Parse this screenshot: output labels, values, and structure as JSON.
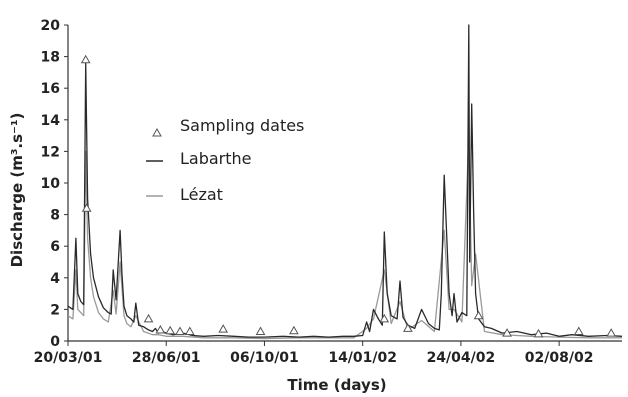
{
  "chart_data": {
    "type": "line",
    "xlabel": "Time (days)",
    "ylabel": "Discharge (m³.s⁻¹)",
    "ylim": [
      0,
      20
    ],
    "xlim": [
      "2001-03-20",
      "2002-10-05"
    ],
    "y_ticks": [
      0,
      2,
      4,
      6,
      8,
      10,
      12,
      14,
      16,
      18,
      20
    ],
    "x_ticks": [
      {
        "date": "2001-03-20",
        "label": "20/03/01"
      },
      {
        "date": "2001-06-28",
        "label": "28/06/01"
      },
      {
        "date": "2001-10-06",
        "label": "06/10/01"
      },
      {
        "date": "2002-01-14",
        "label": "14/01/02"
      },
      {
        "date": "2002-04-24",
        "label": "24/04/02"
      },
      {
        "date": "2002-08-02",
        "label": "02/08/02"
      }
    ],
    "grid": false,
    "legend_position": "upper-left",
    "legend": [
      {
        "name": "Sampling dates",
        "marker": "triangle"
      },
      {
        "name": "Labarthe",
        "marker": "line"
      },
      {
        "name": "Lézat",
        "marker": "line"
      }
    ],
    "series": [
      {
        "name": "Labarthe",
        "color": "#2a2a2a",
        "x": [
          "2001-03-20",
          "2001-03-25",
          "2001-03-28",
          "2001-03-30",
          "2001-04-02",
          "2001-04-05",
          "2001-04-07",
          "2001-04-09",
          "2001-04-12",
          "2001-04-15",
          "2001-04-20",
          "2001-04-25",
          "2001-04-30",
          "2001-05-03",
          "2001-05-05",
          "2001-05-08",
          "2001-05-12",
          "2001-05-14",
          "2001-05-16",
          "2001-05-19",
          "2001-05-23",
          "2001-05-26",
          "2001-05-28",
          "2001-05-31",
          "2001-06-05",
          "2001-06-10",
          "2001-06-14",
          "2001-06-17",
          "2001-06-20",
          "2001-06-24",
          "2001-06-28",
          "2001-07-05",
          "2001-07-15",
          "2001-07-25",
          "2001-08-05",
          "2001-08-20",
          "2001-09-05",
          "2001-09-20",
          "2001-10-06",
          "2001-10-25",
          "2001-11-10",
          "2001-11-25",
          "2001-12-10",
          "2001-12-25",
          "2002-01-05",
          "2002-01-14",
          "2002-01-18",
          "2002-01-21",
          "2002-01-25",
          "2002-01-30",
          "2002-02-03",
          "2002-02-05",
          "2002-02-08",
          "2002-02-12",
          "2002-02-18",
          "2002-02-21",
          "2002-02-24",
          "2002-03-01",
          "2002-03-08",
          "2002-03-15",
          "2002-03-22",
          "2002-03-28",
          "2002-04-02",
          "2002-04-04",
          "2002-04-07",
          "2002-04-12",
          "2002-04-15",
          "2002-04-17",
          "2002-04-20",
          "2002-04-25",
          "2002-04-30",
          "2002-05-02",
          "2002-05-03",
          "2002-05-05",
          "2002-05-07",
          "2002-05-09",
          "2002-05-12",
          "2002-05-18",
          "2002-05-25",
          "2002-06-05",
          "2002-06-20",
          "2002-07-05",
          "2002-07-20",
          "2002-08-02",
          "2002-08-15",
          "2002-09-01",
          "2002-09-20",
          "2002-10-05"
        ],
        "y": [
          2.2,
          2.0,
          6.5,
          3.0,
          2.5,
          2.3,
          17.6,
          9.0,
          5.5,
          4.0,
          2.8,
          2.1,
          1.8,
          1.7,
          4.5,
          2.6,
          7.0,
          4.2,
          2.2,
          1.6,
          1.4,
          1.2,
          2.4,
          1.0,
          0.9,
          0.7,
          0.6,
          0.8,
          0.5,
          0.6,
          0.5,
          0.4,
          0.5,
          0.35,
          0.3,
          0.35,
          0.3,
          0.25,
          0.25,
          0.3,
          0.25,
          0.3,
          0.25,
          0.3,
          0.3,
          0.35,
          1.2,
          0.6,
          2.0,
          1.4,
          1.0,
          6.9,
          3.0,
          1.6,
          1.4,
          3.8,
          1.5,
          1.0,
          0.8,
          2.0,
          1.1,
          0.8,
          0.7,
          3.0,
          10.5,
          3.0,
          1.6,
          3.0,
          1.2,
          1.8,
          1.6,
          20.0,
          5.0,
          15.0,
          8.0,
          3.0,
          1.4,
          0.9,
          0.8,
          0.5,
          0.6,
          0.4,
          0.5,
          0.3,
          0.4,
          0.3,
          0.35,
          0.3
        ]
      },
      {
        "name": "Lézat",
        "color": "#9a9a9a",
        "x": [
          "2001-03-20",
          "2001-03-25",
          "2001-03-28",
          "2001-03-30",
          "2001-04-02",
          "2001-04-05",
          "2001-04-07",
          "2001-04-09",
          "2001-04-12",
          "2001-04-15",
          "2001-04-20",
          "2001-04-25",
          "2001-04-30",
          "2001-05-05",
          "2001-05-08",
          "2001-05-12",
          "2001-05-16",
          "2001-05-19",
          "2001-05-23",
          "2001-05-28",
          "2001-06-05",
          "2001-06-14",
          "2001-06-20",
          "2001-06-28",
          "2001-07-15",
          "2001-08-05",
          "2001-09-05",
          "2001-10-06",
          "2001-11-10",
          "2001-12-10",
          "2002-01-05",
          "2002-01-18",
          "2002-01-25",
          "2002-02-05",
          "2002-02-12",
          "2002-02-21",
          "2002-03-01",
          "2002-03-15",
          "2002-03-28",
          "2002-04-07",
          "2002-04-12",
          "2002-04-17",
          "2002-04-25",
          "2002-05-02",
          "2002-05-05",
          "2002-05-09",
          "2002-05-18",
          "2002-06-05",
          "2002-07-05",
          "2002-08-02",
          "2002-09-01",
          "2002-10-05"
        ],
        "y": [
          1.6,
          1.4,
          4.5,
          2.0,
          1.8,
          1.6,
          12.0,
          6.5,
          4.0,
          2.8,
          1.8,
          1.4,
          1.2,
          3.2,
          1.7,
          5.0,
          1.6,
          1.1,
          0.9,
          1.6,
          0.6,
          0.4,
          0.4,
          0.3,
          0.3,
          0.2,
          0.2,
          0.15,
          0.2,
          0.2,
          0.2,
          0.8,
          1.4,
          4.5,
          1.1,
          2.5,
          0.7,
          1.3,
          0.6,
          7.0,
          2.0,
          2.0,
          1.2,
          13.0,
          3.5,
          5.5,
          0.6,
          0.4,
          0.3,
          0.25,
          0.2,
          0.2
        ]
      }
    ],
    "sampling_dates": {
      "name": "Sampling dates",
      "x": [
        "2001-04-07",
        "2001-04-08",
        "2001-06-10",
        "2001-06-22",
        "2001-07-02",
        "2001-07-12",
        "2001-07-22",
        "2001-08-25",
        "2001-10-02",
        "2001-11-05",
        "2002-02-05",
        "2002-03-01",
        "2002-05-12",
        "2002-06-10",
        "2002-07-12",
        "2002-08-22",
        "2002-09-24"
      ],
      "y": [
        17.8,
        8.4,
        1.4,
        0.7,
        0.65,
        0.6,
        0.6,
        0.75,
        0.6,
        0.65,
        1.4,
        0.8,
        1.6,
        0.5,
        0.45,
        0.6,
        0.5
      ]
    }
  }
}
